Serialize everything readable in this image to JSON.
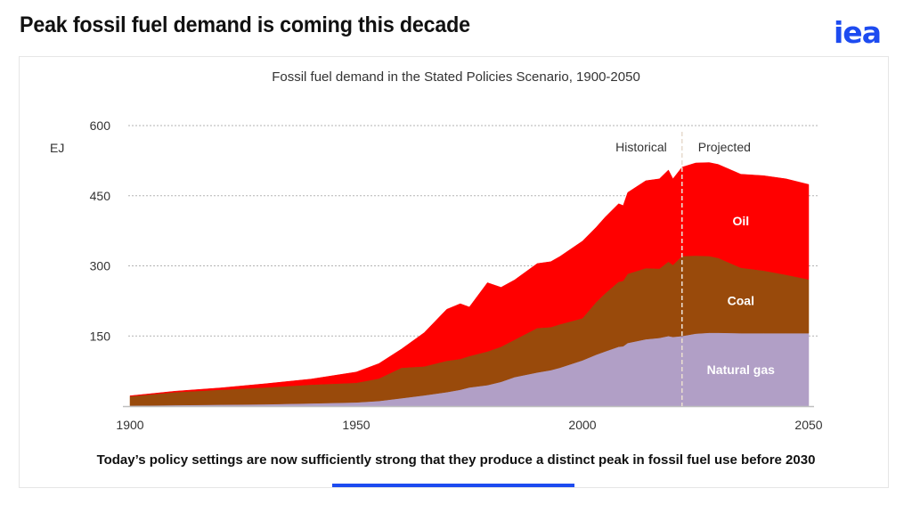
{
  "slide": {
    "title": "Peak fossil fuel demand is coming this decade",
    "logo": "iea",
    "caption": "Today’s policy settings are now sufficiently strong that they produce a distinct peak in fossil fuel use before 2030",
    "accent_color": "#1d4bf0"
  },
  "chart_data": {
    "type": "area",
    "stacked": true,
    "title": "Fossil fuel demand in the Stated Policies Scenario, 1900-2050",
    "xlabel": "",
    "ylabel": "EJ",
    "xlim": [
      1900,
      2050
    ],
    "ylim": [
      0,
      600
    ],
    "x_ticks": [
      "1900",
      "1950",
      "2000",
      "2050"
    ],
    "y_ticks": [
      "150",
      "300",
      "450",
      "600"
    ],
    "grid": "horizontal-dotted",
    "divider": {
      "x": 2022,
      "left_label": "Historical",
      "right_label": "Projected"
    },
    "x": [
      1900,
      1910,
      1920,
      1930,
      1940,
      1950,
      1955,
      1960,
      1965,
      1970,
      1973,
      1975,
      1979,
      1982,
      1985,
      1990,
      1993,
      1995,
      2000,
      2003,
      2005,
      2008,
      2009,
      2010,
      2014,
      2017,
      2019,
      2020,
      2022,
      2025,
      2028,
      2030,
      2035,
      2040,
      2045,
      2050
    ],
    "series": [
      {
        "name": "Natural gas",
        "color": "#b19fc6",
        "values": [
          1,
          2,
          3,
          4,
          6,
          8,
          11,
          17,
          23,
          30,
          35,
          40,
          45,
          52,
          62,
          72,
          77,
          82,
          98,
          110,
          117,
          127,
          128,
          135,
          143,
          146,
          150,
          148,
          150,
          155,
          157,
          157,
          156,
          156,
          156,
          156
        ]
      },
      {
        "name": "Coal",
        "color": "#994a0b",
        "values": [
          20,
          28,
          32,
          36,
          40,
          42,
          48,
          65,
          62,
          67,
          66,
          67,
          72,
          75,
          80,
          95,
          92,
          93,
          90,
          112,
          124,
          139,
          140,
          148,
          152,
          148,
          159,
          154,
          171,
          167,
          164,
          160,
          140,
          134,
          125,
          115
        ]
      },
      {
        "name": "Oil",
        "color": "#ff0000",
        "values": [
          1,
          2,
          4,
          8,
          12,
          23,
          32,
          40,
          72,
          110,
          118,
          105,
          147,
          127,
          128,
          138,
          140,
          145,
          165,
          160,
          163,
          167,
          161,
          174,
          187,
          192,
          196,
          184,
          190,
          198,
          200,
          200,
          200,
          203,
          205,
          203
        ]
      }
    ]
  }
}
